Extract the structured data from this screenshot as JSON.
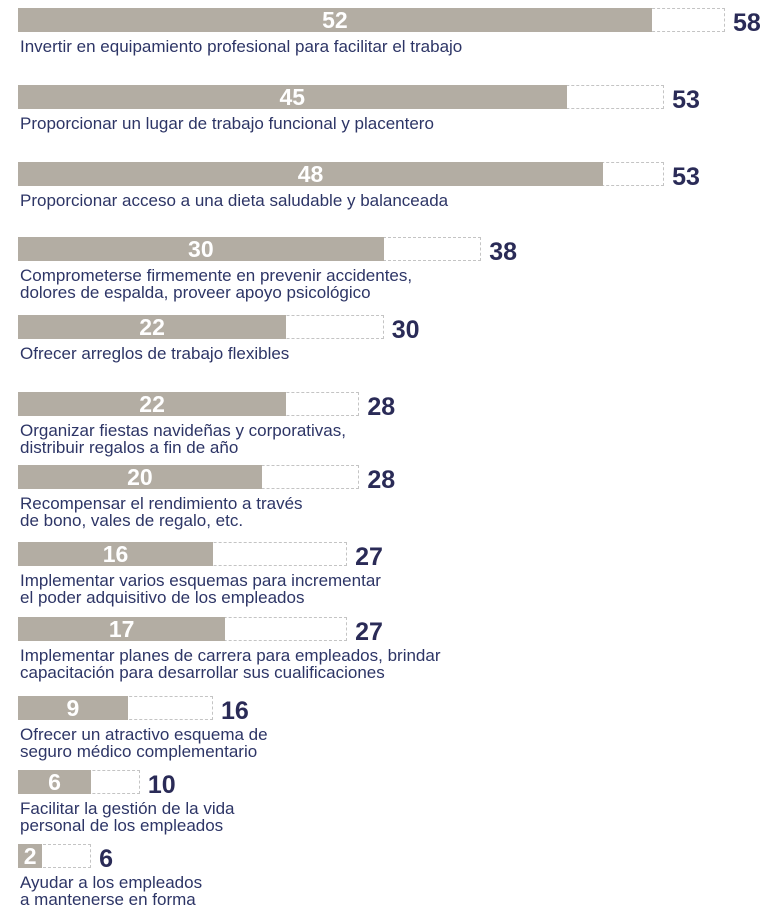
{
  "chart_data": {
    "type": "bar",
    "orientation": "horizontal",
    "categories": [
      "Invertir en equipamiento profesional para facilitar el trabajo",
      "Proporcionar un lugar de trabajo funcional y placentero",
      "Proporcionar acceso a una dieta saludable y balanceada",
      "Comprometerse firmemente en prevenir accidentes,\ndolores de espalda, proveer apoyo psicológico",
      "Ofrecer arreglos de trabajo flexibles",
      "Organizar fiestas navideñas y corporativas,\ndistribuir regalos a fin de año",
      "Recompensar el rendimiento a través\nde bono, vales de regalo, etc.",
      "Implementar varios esquemas para incrementar\nel poder adquisitivo de los empleados",
      "Implementar planes de carrera para empleados, brindar\ncapacitación para desarrollar sus cualificaciones",
      "Ofrecer un atractivo esquema de\nseguro médico complementario",
      "Facilitar la gestión de la vida\npersonal de los empleados",
      "Ayudar a los empleados\na mantenerse en forma"
    ],
    "series": [
      {
        "color": "#b3ada3",
        "values": [
          52,
          45,
          48,
          30,
          22,
          22,
          20,
          16,
          17,
          9,
          6,
          2
        ]
      },
      {
        "color": "#c4c4c4",
        "style": "dashed",
        "values": [
          58,
          53,
          53,
          38,
          30,
          28,
          28,
          27,
          27,
          16,
          10,
          6
        ]
      }
    ],
    "xlim": [
      0,
      60
    ]
  }
}
